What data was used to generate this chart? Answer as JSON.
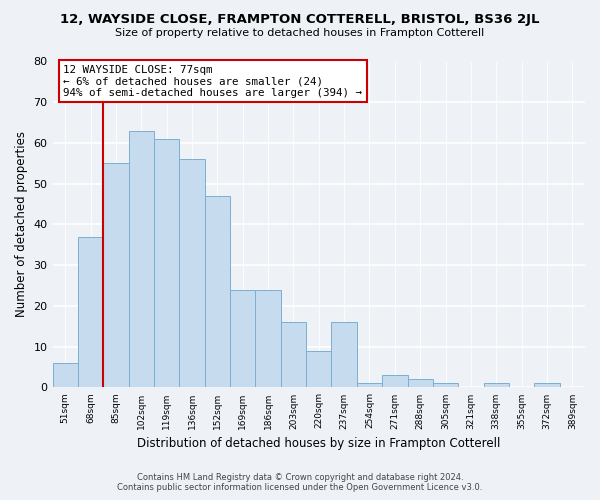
{
  "title": "12, WAYSIDE CLOSE, FRAMPTON COTTERELL, BRISTOL, BS36 2JL",
  "subtitle": "Size of property relative to detached houses in Frampton Cotterell",
  "xlabel": "Distribution of detached houses by size in Frampton Cotterell",
  "ylabel": "Number of detached properties",
  "bar_color": "#c6dcee",
  "bar_edge_color": "#7ab0d4",
  "categories": [
    "51sqm",
    "68sqm",
    "85sqm",
    "102sqm",
    "119sqm",
    "136sqm",
    "152sqm",
    "169sqm",
    "186sqm",
    "203sqm",
    "220sqm",
    "237sqm",
    "254sqm",
    "271sqm",
    "288sqm",
    "305sqm",
    "321sqm",
    "338sqm",
    "355sqm",
    "372sqm",
    "389sqm"
  ],
  "values": [
    6,
    37,
    55,
    63,
    61,
    56,
    47,
    24,
    24,
    16,
    9,
    16,
    1,
    3,
    2,
    1,
    0,
    1,
    0,
    1,
    0
  ],
  "ylim": [
    0,
    80
  ],
  "yticks": [
    0,
    10,
    20,
    30,
    40,
    50,
    60,
    70,
    80
  ],
  "property_line_index": 2,
  "property_line_color": "#cc0000",
  "annotation_title": "12 WAYSIDE CLOSE: 77sqm",
  "annotation_line1": "← 6% of detached houses are smaller (24)",
  "annotation_line2": "94% of semi-detached houses are larger (394) →",
  "annotation_box_color": "#ffffff",
  "annotation_box_edge": "#cc0000",
  "footer_line1": "Contains HM Land Registry data © Crown copyright and database right 2024.",
  "footer_line2": "Contains public sector information licensed under the Open Government Licence v3.0.",
  "background_color": "#eef2f7",
  "grid_color": "#ffffff"
}
